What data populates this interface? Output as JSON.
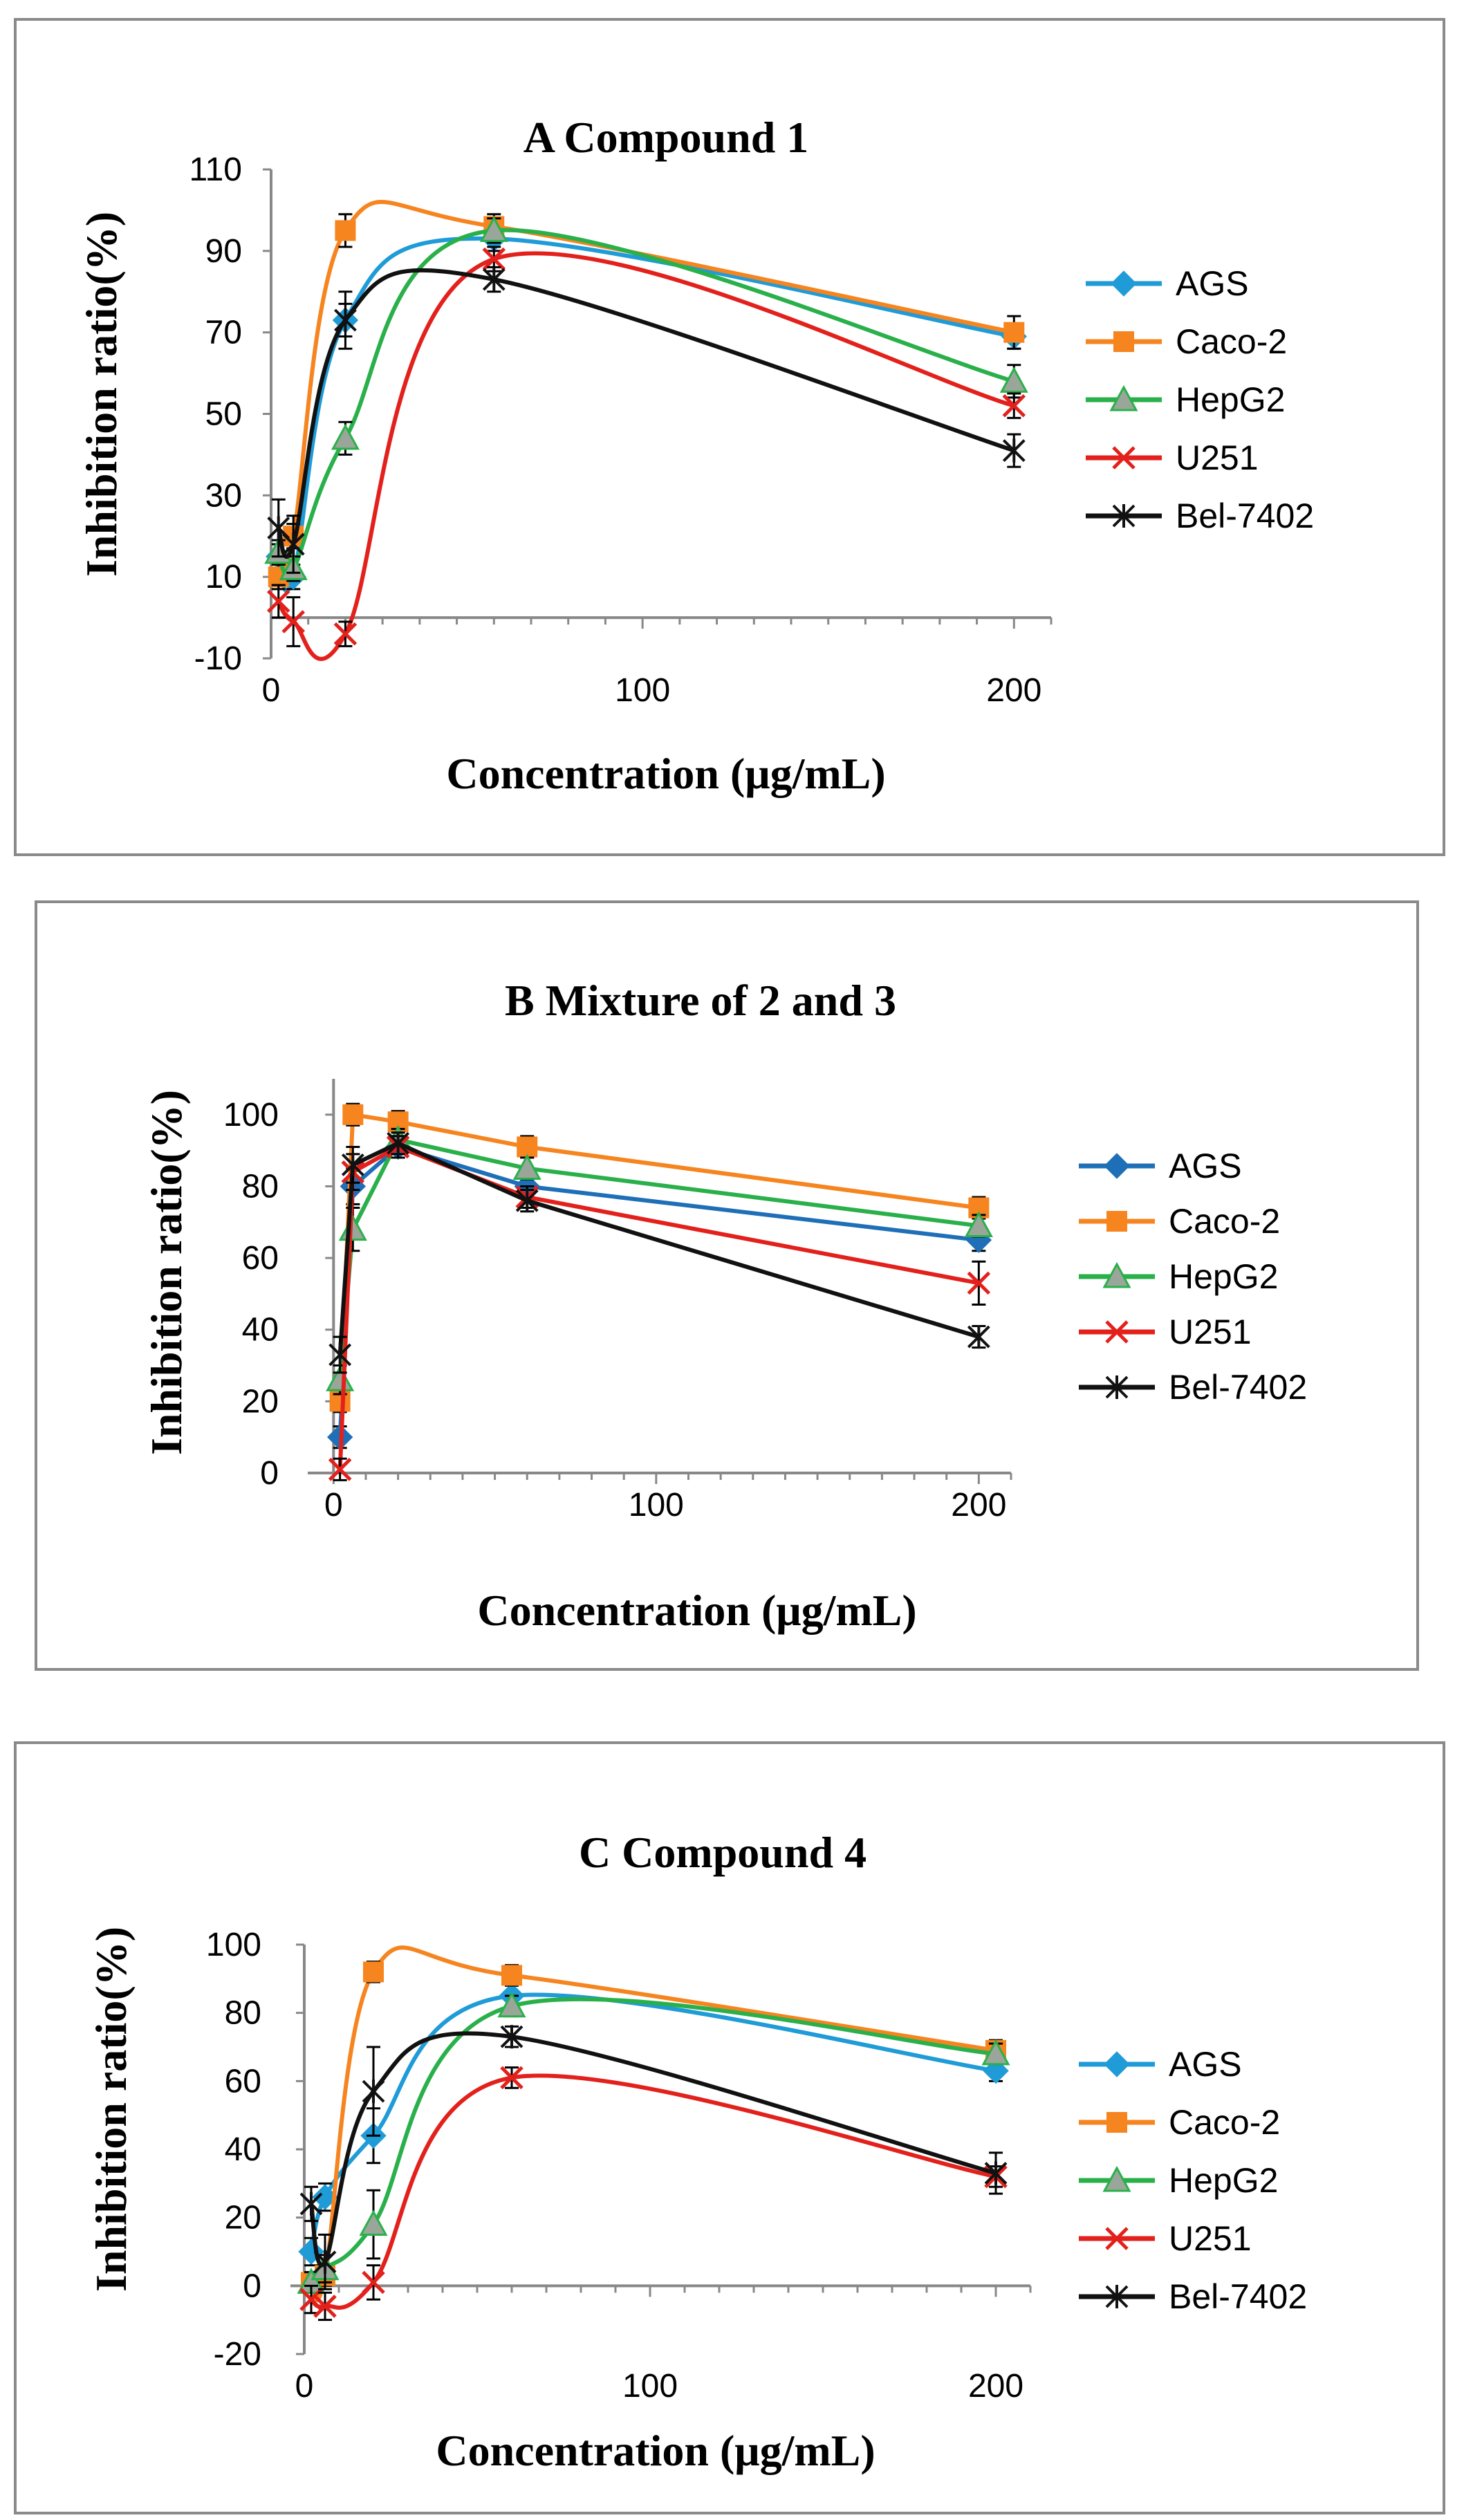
{
  "chart_data": [
    {
      "type": "scatter",
      "panel": "A",
      "title": "A  Compound 1",
      "xlabel": "Concentration (μg/mL)",
      "ylabel": "Inhibition ratio(%)",
      "xlim": [
        0,
        210
      ],
      "ylim": [
        -10,
        110
      ],
      "xticks": [
        0,
        100,
        200
      ],
      "yticks": [
        -10,
        10,
        30,
        50,
        70,
        90,
        110
      ],
      "x": [
        2,
        6,
        20,
        60,
        200
      ],
      "legend_position": "right",
      "series": [
        {
          "name": "AGS",
          "color": "#1f9bd7",
          "marker": "diamond",
          "smooth": true,
          "values": [
            15,
            10,
            73,
            93,
            69
          ],
          "errors": [
            3,
            3,
            4,
            3,
            3
          ]
        },
        {
          "name": "Caco-2",
          "color": "#f6841f",
          "marker": "square",
          "smooth": true,
          "values": [
            10,
            20,
            95,
            96,
            70
          ],
          "errors": [
            3,
            3,
            4,
            3,
            4
          ]
        },
        {
          "name": "HepG2",
          "color": "#2ab04a",
          "marker": "triangle",
          "smooth": true,
          "values": [
            16,
            12,
            44,
            95,
            58
          ],
          "errors": [
            3,
            3,
            4,
            3,
            4
          ]
        },
        {
          "name": "U251",
          "color": "#e3211c",
          "marker": "x",
          "smooth": true,
          "values": [
            4,
            -1,
            -4,
            88,
            52
          ],
          "errors": [
            4,
            6,
            3,
            3,
            3
          ]
        },
        {
          "name": "Bel-7402",
          "color": "#111111",
          "marker": "star",
          "smooth": true,
          "values": [
            22,
            18,
            73,
            83,
            41
          ],
          "errors": [
            7,
            7,
            7,
            3,
            4
          ]
        }
      ]
    },
    {
      "type": "line",
      "panel": "B",
      "title": "B  Mixture of 2 and 3",
      "xlabel": "Concentration (μg/mL)",
      "ylabel": "Inhibition ratio(%)",
      "xlim": [
        -8,
        210
      ],
      "ylim": [
        0,
        110
      ],
      "xticks": [
        0,
        100,
        200
      ],
      "yticks": [
        0,
        20,
        40,
        60,
        80,
        100
      ],
      "x": [
        2,
        6,
        20,
        60,
        200
      ],
      "legend_position": "right",
      "series": [
        {
          "name": "AGS",
          "color": "#1f6fb8",
          "marker": "diamond",
          "smooth": false,
          "values": [
            10,
            80,
            91,
            80,
            65
          ],
          "errors": [
            3,
            5,
            3,
            3,
            3
          ]
        },
        {
          "name": "Caco-2",
          "color": "#f6841f",
          "marker": "square",
          "smooth": false,
          "values": [
            20,
            100,
            98,
            91,
            74
          ],
          "errors": [
            3,
            3,
            3,
            3,
            3
          ]
        },
        {
          "name": "HepG2",
          "color": "#2ab04a",
          "marker": "triangle",
          "smooth": false,
          "values": [
            26,
            68,
            93,
            85,
            69
          ],
          "errors": [
            4,
            6,
            3,
            3,
            3
          ]
        },
        {
          "name": "U251",
          "color": "#e3211c",
          "marker": "x",
          "smooth": false,
          "values": [
            1,
            84,
            91,
            77,
            53
          ],
          "errors": [
            3,
            5,
            3,
            3,
            6
          ]
        },
        {
          "name": "Bel-7402",
          "color": "#111111",
          "marker": "star",
          "smooth": false,
          "values": [
            33,
            86,
            92,
            76,
            38
          ],
          "errors": [
            5,
            5,
            3,
            3,
            3
          ]
        }
      ]
    },
    {
      "type": "scatter",
      "panel": "C",
      "title": "C  Compound 4",
      "xlabel": "Concentration (μg/mL)",
      "ylabel": "Inhibition ratio(%)",
      "xlim": [
        -4,
        210
      ],
      "ylim": [
        -20,
        100
      ],
      "xticks": [
        0,
        100,
        200
      ],
      "yticks": [
        -20,
        0,
        20,
        40,
        60,
        80,
        100
      ],
      "x": [
        2,
        6,
        20,
        60,
        200
      ],
      "legend_position": "right",
      "series": [
        {
          "name": "AGS",
          "color": "#1f9bd7",
          "marker": "diamond",
          "smooth": true,
          "values": [
            10,
            26,
            44,
            85,
            63
          ],
          "errors": [
            4,
            4,
            8,
            3,
            3
          ]
        },
        {
          "name": "Caco-2",
          "color": "#f6841f",
          "marker": "square",
          "smooth": true,
          "values": [
            1,
            3,
            92,
            91,
            69
          ],
          "errors": [
            3,
            3,
            3,
            3,
            3
          ]
        },
        {
          "name": "HepG2",
          "color": "#2ab04a",
          "marker": "triangle",
          "smooth": true,
          "values": [
            1,
            5,
            18,
            82,
            68
          ],
          "errors": [
            3,
            4,
            10,
            3,
            3
          ]
        },
        {
          "name": "U251",
          "color": "#e3211c",
          "marker": "x",
          "smooth": true,
          "values": [
            -4,
            -6,
            1,
            61,
            32
          ],
          "errors": [
            4,
            4,
            5,
            3,
            3
          ]
        },
        {
          "name": "Bel-7402",
          "color": "#111111",
          "marker": "star",
          "smooth": true,
          "values": [
            24,
            7,
            57,
            73,
            33
          ],
          "errors": [
            5,
            8,
            13,
            3,
            6
          ]
        }
      ]
    }
  ]
}
